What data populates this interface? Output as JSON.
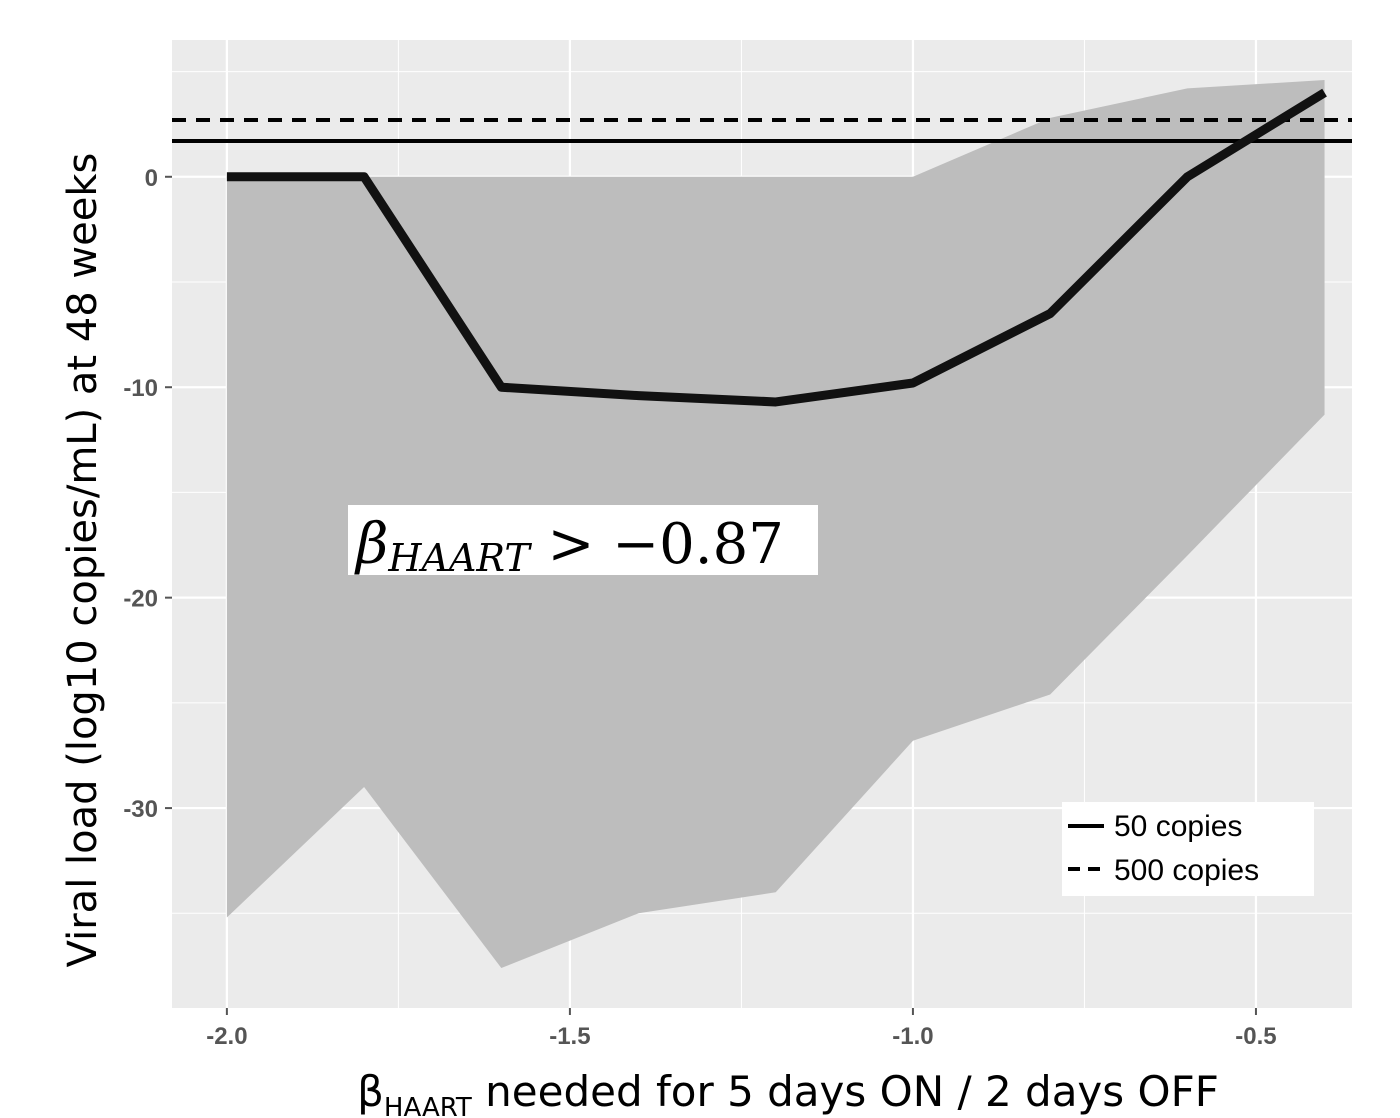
{
  "chart_data": {
    "type": "line",
    "xlabel": {
      "greek": "β",
      "subscript": "HAART",
      "text": " needed for 5 days ON / 2 days OFF"
    },
    "ylabel": "Viral load (log10 copies/mL) at 48 weeks",
    "xlim": [
      -2.08,
      -0.36
    ],
    "ylim": [
      -39.5,
      6.5
    ],
    "x_ticks": [
      {
        "value": -2.0,
        "label": "-2.0"
      },
      {
        "value": -1.5,
        "label": "-1.5"
      },
      {
        "value": -1.0,
        "label": "-1.0"
      },
      {
        "value": -0.5,
        "label": "-0.5"
      }
    ],
    "y_ticks": [
      {
        "value": 0,
        "label": "0"
      },
      {
        "value": -10,
        "label": "-10"
      },
      {
        "value": -20,
        "label": "-20"
      },
      {
        "value": -30,
        "label": "-30"
      }
    ],
    "grid": true,
    "series": [
      {
        "kind": "line",
        "x": [
          -2.0,
          -1.8,
          -1.6,
          -1.4,
          -1.2,
          -1.0,
          -0.8,
          -0.6,
          -0.4
        ],
        "y": [
          0.0,
          0.0,
          -10.0,
          -10.4,
          -10.7,
          -9.8,
          -6.5,
          0.0,
          4.0
        ]
      }
    ],
    "ribbon": {
      "x": [
        -2.0,
        -1.8,
        -1.6,
        -1.4,
        -1.2,
        -1.0,
        -0.8,
        -0.6,
        -0.4
      ],
      "lower": [
        -35.2,
        -29.0,
        -37.6,
        -35.0,
        -34.0,
        -26.8,
        -24.6,
        -18.0,
        -11.3
      ],
      "upper": [
        0.0,
        0.0,
        0.0,
        0.0,
        0.0,
        0.0,
        2.8,
        4.2,
        4.6
      ]
    },
    "hlines": [
      {
        "y": 1.7,
        "style": "solid",
        "label": "50 copies"
      },
      {
        "y": 2.7,
        "style": "dashed",
        "label": "500 copies"
      }
    ],
    "legend_position": "bottom-right",
    "annotation": {
      "greek": "β",
      "subscript": "HAART",
      "text": " > −0.87"
    },
    "colors": {
      "panel": "#ebebeb",
      "grid": "#ffffff",
      "ribbon": "#bdbdbd",
      "line": "#111111",
      "tick": "#555555"
    }
  }
}
